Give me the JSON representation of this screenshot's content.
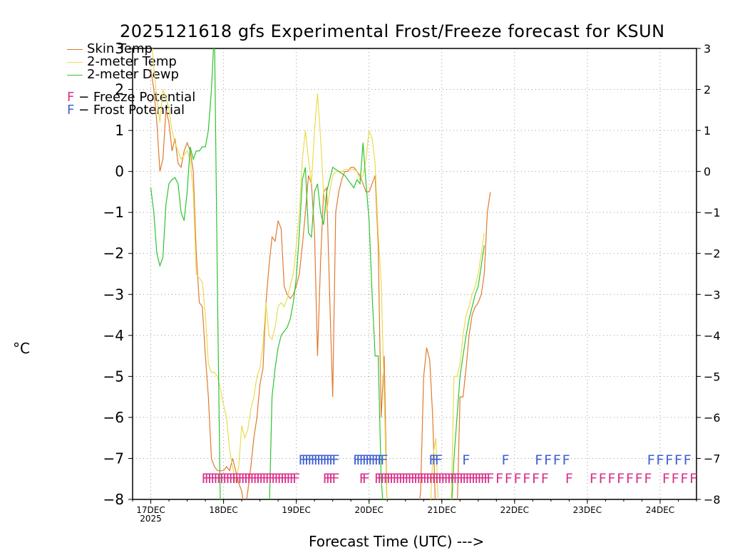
{
  "chart_data": {
    "type": "line",
    "title": "2025121618 gfs Experimental Frost/Freeze forecast for KSUN",
    "ylabel": "°C",
    "xlabel": "Forecast Time (UTC) --->",
    "ylim": [
      -8,
      3
    ],
    "yticks": [
      3,
      2,
      1,
      0,
      -1,
      -2,
      -3,
      -4,
      -5,
      -6,
      -7,
      -8
    ],
    "ytick_labels": [
      "3",
      "2",
      "1",
      "0",
      "−1",
      "−2",
      "−3",
      "−4",
      "−5",
      "−6",
      "−7",
      "−8"
    ],
    "xlim_hours": [
      -6,
      180
    ],
    "xticks": [
      {
        "hour": 0,
        "label": "17DEC",
        "sublabel": "2025"
      },
      {
        "hour": 24,
        "label": "18DEC"
      },
      {
        "hour": 48,
        "label": "19DEC"
      },
      {
        "hour": 72,
        "label": "20DEC"
      },
      {
        "hour": 96,
        "label": "21DEC"
      },
      {
        "hour": 120,
        "label": "22DEC"
      },
      {
        "hour": 144,
        "label": "23DEC"
      },
      {
        "hour": 168,
        "label": "24DEC"
      }
    ],
    "grid": true,
    "legend": {
      "position": "top-left",
      "entries": [
        {
          "label": "Skin Temp",
          "color": "#e07a2e"
        },
        {
          "label": "2-meter Temp",
          "color": "#e8dc50"
        },
        {
          "label": "2-meter Dewp",
          "color": "#2ec42e"
        }
      ],
      "potential_entries": [
        {
          "glyph": "F",
          "label": "− Freeze Potential",
          "color": "#d8308c"
        },
        {
          "glyph": "F",
          "label": "− Frost Potential",
          "color": "#4060d0"
        }
      ]
    },
    "series": [
      {
        "name": "Skin Temp",
        "color": "#e07a2e",
        "points": [
          [
            0,
            2.5
          ],
          [
            1,
            2.0
          ],
          [
            2,
            1.2
          ],
          [
            3,
            0.0
          ],
          [
            4,
            0.3
          ],
          [
            5,
            1.5
          ],
          [
            6,
            1.2
          ],
          [
            7,
            0.5
          ],
          [
            8,
            0.8
          ],
          [
            9,
            0.2
          ],
          [
            10,
            0.1
          ],
          [
            11,
            0.5
          ],
          [
            12,
            0.7
          ],
          [
            13,
            0.5
          ],
          [
            14,
            0.0
          ],
          [
            15,
            -2
          ],
          [
            16,
            -3.2
          ],
          [
            17,
            -3.3
          ],
          [
            18,
            -4.5
          ],
          [
            19,
            -5.5
          ],
          [
            20,
            -7.0
          ],
          [
            21,
            -7.2
          ],
          [
            22,
            -7.3
          ],
          [
            23,
            -7.3
          ],
          [
            24,
            -7.3
          ],
          [
            25,
            -7.2
          ],
          [
            26,
            -7.3
          ],
          [
            27,
            -7.0
          ],
          [
            28,
            -7.3
          ],
          [
            29,
            -7.6
          ],
          [
            30,
            -7.8
          ],
          [
            31,
            -8.3
          ],
          [
            32,
            -7.8
          ],
          [
            33,
            -7.2
          ],
          [
            34,
            -6.5
          ],
          [
            35,
            -6.0
          ],
          [
            36,
            -5.2
          ],
          [
            37,
            -4.8
          ],
          [
            38,
            -3.2
          ],
          [
            39,
            -2.3
          ],
          [
            40,
            -1.6
          ],
          [
            41,
            -1.7
          ],
          [
            42,
            -1.2
          ],
          [
            43,
            -1.4
          ],
          [
            44,
            -2.8
          ],
          [
            45,
            -3.0
          ],
          [
            46,
            -3.1
          ],
          [
            47,
            -3.0
          ],
          [
            48,
            -2.8
          ],
          [
            49,
            -2.5
          ],
          [
            50,
            -1.8
          ],
          [
            51,
            -1.0
          ],
          [
            52,
            -0.1
          ],
          [
            53,
            -0.3
          ],
          [
            54,
            -1.5
          ],
          [
            55,
            -4.5
          ],
          [
            56,
            -2.2
          ],
          [
            57,
            -0.5
          ],
          [
            58,
            -0.4
          ],
          [
            59,
            -3.0
          ],
          [
            60,
            -5.5
          ],
          [
            61,
            -1.0
          ],
          [
            62,
            -0.5
          ],
          [
            63,
            -0.2
          ],
          [
            64,
            0.0
          ],
          [
            65,
            0.0
          ],
          [
            66,
            0.1
          ],
          [
            67,
            0.1
          ],
          [
            68,
            0.0
          ],
          [
            69,
            -0.1
          ],
          [
            70,
            -0.3
          ],
          [
            71,
            -0.5
          ],
          [
            72,
            -0.5
          ],
          [
            73,
            -0.3
          ],
          [
            74,
            -0.1
          ],
          [
            75,
            -1.8
          ],
          [
            76,
            -6.0
          ],
          [
            77,
            -4.5
          ],
          [
            78,
            -8.5
          ],
          [
            88,
            -8.5
          ],
          [
            89,
            -7.8
          ],
          [
            90,
            -5.0
          ],
          [
            91,
            -4.3
          ],
          [
            92,
            -4.6
          ],
          [
            93,
            -6.0
          ],
          [
            94,
            -8.5
          ],
          [
            101,
            -8.5
          ],
          [
            102,
            -5.5
          ],
          [
            103,
            -5.5
          ],
          [
            104,
            -4.8
          ],
          [
            105,
            -4.0
          ],
          [
            106,
            -3.5
          ],
          [
            107,
            -3.3
          ],
          [
            108,
            -3.2
          ],
          [
            109,
            -3.0
          ],
          [
            110,
            -2.5
          ],
          [
            111,
            -1.0
          ],
          [
            112,
            -0.5
          ]
        ]
      },
      {
        "name": "2-meter Temp",
        "color": "#e8dc50",
        "points": [
          [
            0,
            3.5
          ],
          [
            1,
            2.5
          ],
          [
            2,
            1.8
          ],
          [
            3,
            1.2
          ],
          [
            4,
            2.0
          ],
          [
            5,
            1.8
          ],
          [
            6,
            1.5
          ],
          [
            7,
            1.0
          ],
          [
            8,
            0.7
          ],
          [
            9,
            0.5
          ],
          [
            10,
            0.3
          ],
          [
            11,
            0.4
          ],
          [
            12,
            0.5
          ],
          [
            13,
            0.3
          ],
          [
            14,
            -0.5
          ],
          [
            15,
            -2.5
          ],
          [
            16,
            -2.6
          ],
          [
            17,
            -2.7
          ],
          [
            18,
            -3.5
          ],
          [
            19,
            -4.7
          ],
          [
            20,
            -4.9
          ],
          [
            21,
            -4.9
          ],
          [
            22,
            -5.0
          ],
          [
            23,
            -5.3
          ],
          [
            24,
            -5.7
          ],
          [
            25,
            -6.0
          ],
          [
            26,
            -6.8
          ],
          [
            27,
            -7.2
          ],
          [
            28,
            -7.6
          ],
          [
            29,
            -7.2
          ],
          [
            30,
            -6.2
          ],
          [
            31,
            -6.5
          ],
          [
            32,
            -6.3
          ],
          [
            33,
            -5.8
          ],
          [
            34,
            -5.5
          ],
          [
            35,
            -5.0
          ],
          [
            36,
            -4.8
          ],
          [
            37,
            -4.2
          ],
          [
            38,
            -3.2
          ],
          [
            39,
            -4.0
          ],
          [
            40,
            -4.1
          ],
          [
            41,
            -3.8
          ],
          [
            42,
            -3.3
          ],
          [
            43,
            -3.2
          ],
          [
            44,
            -3.3
          ],
          [
            45,
            -3.1
          ],
          [
            46,
            -2.8
          ],
          [
            47,
            -2.5
          ],
          [
            48,
            -1.8
          ],
          [
            49,
            -1.0
          ],
          [
            50,
            0.3
          ],
          [
            51,
            1.0
          ],
          [
            52,
            0.3
          ],
          [
            53,
            -0.3
          ],
          [
            54,
            1.0
          ],
          [
            55,
            1.9
          ],
          [
            56,
            0.8
          ],
          [
            57,
            -0.5
          ],
          [
            58,
            -1.0
          ],
          [
            59,
            -0.5
          ],
          [
            60,
            -0.1
          ],
          [
            61,
            0.0
          ],
          [
            62,
            0.0
          ],
          [
            63,
            0.0
          ],
          [
            64,
            0.05
          ],
          [
            65,
            0.05
          ],
          [
            66,
            0.05
          ],
          [
            67,
            0.05
          ],
          [
            68,
            0.0
          ],
          [
            69,
            -0.2
          ],
          [
            70,
            -0.1
          ],
          [
            71,
            0.3
          ],
          [
            72,
            1.0
          ],
          [
            73,
            0.8
          ],
          [
            74,
            0.2
          ],
          [
            75,
            -1.5
          ],
          [
            76,
            -2.7
          ],
          [
            77,
            -5.5
          ],
          [
            78,
            -8.5
          ],
          [
            92,
            -8.5
          ],
          [
            93,
            -7.0
          ],
          [
            94,
            -6.5
          ],
          [
            95,
            -8.5
          ],
          [
            99,
            -8.5
          ],
          [
            100,
            -5.0
          ],
          [
            101,
            -5.0
          ],
          [
            102,
            -4.7
          ],
          [
            103,
            -4.0
          ],
          [
            104,
            -3.5
          ],
          [
            105,
            -3.3
          ],
          [
            106,
            -3.0
          ],
          [
            107,
            -2.8
          ],
          [
            108,
            -2.5
          ],
          [
            109,
            -2.0
          ],
          [
            110,
            -1.5
          ]
        ]
      },
      {
        "name": "2-meter Dewp",
        "color": "#2ec42e",
        "points": [
          [
            0,
            -0.4
          ],
          [
            1,
            -1.0
          ],
          [
            2,
            -2.0
          ],
          [
            3,
            -2.3
          ],
          [
            4,
            -2.1
          ],
          [
            5,
            -0.8
          ],
          [
            6,
            -0.3
          ],
          [
            7,
            -0.2
          ],
          [
            8,
            -0.15
          ],
          [
            9,
            -0.3
          ],
          [
            10,
            -1.0
          ],
          [
            11,
            -1.2
          ],
          [
            12,
            -0.5
          ],
          [
            13,
            0.6
          ],
          [
            14,
            0.3
          ],
          [
            15,
            0.5
          ],
          [
            16,
            0.5
          ],
          [
            17,
            0.6
          ],
          [
            18,
            0.6
          ],
          [
            19,
            1.0
          ],
          [
            20,
            2.0
          ],
          [
            21,
            3.5
          ],
          [
            22,
            -3.0
          ],
          [
            23,
            -8.5
          ],
          [
            39,
            -8.5
          ],
          [
            40,
            -5.5
          ],
          [
            41,
            -4.8
          ],
          [
            42,
            -4.3
          ],
          [
            43,
            -4.0
          ],
          [
            44,
            -3.9
          ],
          [
            45,
            -3.8
          ],
          [
            46,
            -3.6
          ],
          [
            47,
            -3.2
          ],
          [
            48,
            -2.6
          ],
          [
            49,
            -1.5
          ],
          [
            50,
            -0.2
          ],
          [
            51,
            0.1
          ],
          [
            52,
            -1.5
          ],
          [
            53,
            -1.6
          ],
          [
            54,
            -0.5
          ],
          [
            55,
            -0.3
          ],
          [
            56,
            -1.0
          ],
          [
            57,
            -1.3
          ],
          [
            58,
            -0.5
          ],
          [
            59,
            -0.2
          ],
          [
            60,
            0.1
          ],
          [
            61,
            0.05
          ],
          [
            62,
            0.0
          ],
          [
            63,
            -0.05
          ],
          [
            64,
            -0.1
          ],
          [
            65,
            -0.2
          ],
          [
            66,
            -0.3
          ],
          [
            67,
            -0.4
          ],
          [
            68,
            -0.2
          ],
          [
            69,
            -0.3
          ],
          [
            70,
            0.7
          ],
          [
            71,
            -0.3
          ],
          [
            72,
            -1.2
          ],
          [
            73,
            -3.0
          ],
          [
            74,
            -4.5
          ],
          [
            75,
            -4.5
          ],
          [
            76,
            -7.5
          ],
          [
            77,
            -8.5
          ],
          [
            99,
            -8.5
          ],
          [
            100,
            -7.0
          ],
          [
            101,
            -6.0
          ],
          [
            102,
            -5.0
          ],
          [
            103,
            -4.5
          ],
          [
            104,
            -4.0
          ],
          [
            105,
            -3.6
          ],
          [
            106,
            -3.3
          ],
          [
            107,
            -3.0
          ],
          [
            108,
            -2.8
          ],
          [
            109,
            -2.3
          ],
          [
            110,
            -1.8
          ]
        ]
      }
    ],
    "markers": {
      "freeze_hours": [
        18,
        19,
        20,
        21,
        22,
        23,
        24,
        25,
        26,
        27,
        28,
        29,
        30,
        31,
        32,
        33,
        34,
        35,
        36,
        37,
        38,
        39,
        40,
        41,
        42,
        43,
        44,
        45,
        46,
        47,
        48,
        58,
        59,
        60,
        61,
        70,
        71,
        75,
        76,
        77,
        78,
        79,
        80,
        81,
        82,
        83,
        84,
        85,
        86,
        87,
        88,
        89,
        90,
        91,
        92,
        93,
        94,
        95,
        96,
        97,
        98,
        99,
        100,
        101,
        102,
        103,
        104,
        105,
        106,
        107,
        108,
        109,
        110,
        111,
        112,
        115,
        118,
        121,
        124,
        127,
        130,
        138,
        146,
        149,
        152,
        155,
        158,
        161,
        164,
        170,
        173,
        176,
        179
      ],
      "frost_hours": [
        50,
        51,
        52,
        53,
        54,
        55,
        56,
        57,
        58,
        59,
        60,
        61,
        68,
        69,
        70,
        71,
        72,
        73,
        74,
        75,
        76,
        77,
        93,
        94,
        95,
        104,
        117,
        128,
        131,
        134,
        137,
        165,
        168,
        171,
        174,
        177
      ]
    }
  }
}
